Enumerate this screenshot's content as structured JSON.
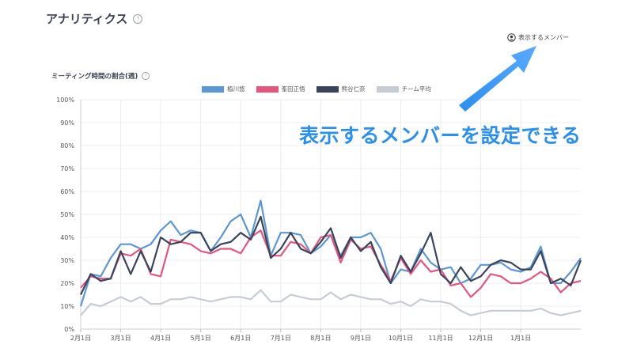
{
  "header": {
    "title": "アナリティクス"
  },
  "member_link": {
    "label": "表示するメンバー"
  },
  "annotation": {
    "text": "表示するメンバーを設定できる",
    "color": "#2b8ff0"
  },
  "chart_data": {
    "type": "line",
    "title": "ミーティング時間の割合(週)",
    "y_ticks": [
      "0%",
      "10%",
      "20%",
      "30%",
      "40%",
      "50%",
      "60%",
      "70%",
      "80%",
      "90%",
      "100%"
    ],
    "ylim": [
      0,
      100
    ],
    "x_tick_labels": [
      "2月1日",
      "3月1日",
      "4月1日",
      "5月1日",
      "6月1日",
      "7月1日",
      "8月1日",
      "9月1日",
      "10月1日",
      "11月1日",
      "12月1日",
      "1月1日"
    ],
    "x_tick_index": [
      0,
      4,
      8,
      12,
      16,
      20,
      24,
      28,
      32,
      36,
      40,
      44
    ],
    "grid": true,
    "legend_position": "top-center",
    "series": [
      {
        "name": "植川悠",
        "color": "#5b97d4",
        "values": [
          10,
          24,
          23,
          31,
          37,
          37,
          35,
          37,
          43,
          47,
          41,
          43,
          42,
          34,
          40,
          47,
          50,
          40,
          56,
          32,
          42,
          42,
          41,
          33,
          36,
          41,
          32,
          40,
          40,
          42,
          35,
          20,
          26,
          25,
          35,
          29,
          26,
          27,
          20,
          22,
          28,
          28,
          29,
          26,
          25,
          27,
          36,
          20,
          20,
          25,
          31
        ]
      },
      {
        "name": "峯田正悟",
        "color": "#e4567e",
        "values": [
          18,
          23,
          22,
          22,
          33,
          32,
          35,
          24,
          23,
          39,
          38,
          37,
          34,
          33,
          35,
          35,
          33,
          40,
          43,
          32,
          32,
          38,
          37,
          33,
          40,
          41,
          29,
          39,
          35,
          36,
          28,
          21,
          31,
          24,
          30,
          25,
          26,
          19,
          20,
          14,
          18,
          24,
          23,
          20,
          20,
          22,
          25,
          22,
          16,
          20,
          21
        ]
      },
      {
        "name": "熊谷仁奈",
        "color": "#37445a",
        "values": [
          15,
          24,
          21,
          22,
          34,
          24,
          34,
          25,
          40,
          37,
          38,
          42,
          42,
          34,
          37,
          38,
          42,
          39,
          49,
          31,
          35,
          42,
          35,
          33,
          38,
          44,
          31,
          40,
          34,
          38,
          27,
          20,
          32,
          25,
          33,
          42,
          24,
          20,
          27,
          21,
          23,
          28,
          30,
          29,
          26,
          26,
          34,
          20,
          22,
          19,
          30
        ]
      },
      {
        "name": "チーム平均",
        "color": "#c7ccd4",
        "values": [
          6,
          11,
          10,
          12,
          14,
          12,
          14,
          11,
          11,
          13,
          13,
          14,
          13,
          12,
          13,
          14,
          14,
          13,
          17,
          12,
          12,
          15,
          14,
          13,
          13,
          16,
          13,
          15,
          14,
          13,
          13,
          11,
          12,
          10,
          13,
          12,
          12,
          11,
          8,
          6,
          7,
          8,
          8,
          8,
          8,
          8,
          9,
          7,
          6,
          7,
          8
        ]
      }
    ]
  }
}
